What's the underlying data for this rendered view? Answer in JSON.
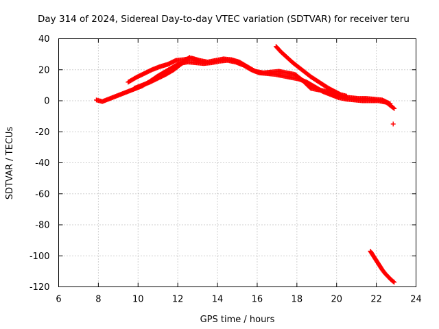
{
  "chart_data": {
    "type": "scatter",
    "title": "Day 314 of 2024, Sidereal Day-to-day VTEC variation (SDTVAR) for receiver teru",
    "xlabel": "GPS time / hours",
    "ylabel": "SDTVAR / TECUs",
    "xlim": [
      6,
      24
    ],
    "ylim": [
      -120,
      40
    ],
    "xticks": [
      6,
      8,
      10,
      12,
      14,
      16,
      18,
      20,
      22,
      24
    ],
    "yticks": [
      -120,
      -100,
      -80,
      -60,
      -40,
      -20,
      0,
      20,
      40
    ],
    "grid": true,
    "marker": "plus",
    "color": "#ff0000",
    "series": [
      {
        "name": "track-a",
        "x": [
          7.9,
          8.2,
          8.6,
          9.0,
          9.4,
          9.8,
          10.2,
          10.6,
          11.0,
          11.4,
          11.8,
          12.1,
          12.5,
          12.9,
          13.3,
          13.7,
          14.1,
          14.5,
          14.9,
          15.3,
          15.7,
          16.1,
          16.5,
          16.9,
          17.3,
          17.7,
          18.1,
          18.5,
          18.9,
          19.3,
          19.7,
          20.1,
          20.5,
          20.9,
          21.3,
          21.7,
          22.1,
          22.5,
          22.9
        ],
        "y": [
          0.5,
          -0.5,
          1.5,
          3.5,
          5.5,
          7.5,
          9.5,
          12.5,
          16,
          19,
          22,
          24,
          25,
          24.5,
          24,
          24.5,
          25.5,
          26,
          25,
          23,
          20,
          18,
          17.5,
          17,
          16,
          15,
          14,
          12,
          9,
          6,
          4,
          2,
          1,
          0.5,
          0,
          0,
          0,
          -1,
          -5
        ]
      },
      {
        "name": "track-b",
        "x": [
          9.5,
          9.9,
          10.3,
          10.7,
          11.1,
          11.5,
          11.9,
          12.3,
          12.7,
          13.1,
          13.5,
          13.9,
          14.3,
          14.7,
          15.1,
          15.5,
          15.9,
          16.3,
          16.7,
          17.1,
          17.5,
          17.9,
          18.3,
          18.7,
          19.1,
          19.5,
          19.9,
          20.3,
          20.7,
          21.1,
          21.5,
          21.9,
          22.3,
          22.7
        ],
        "y": [
          12,
          15,
          17.5,
          20,
          22,
          23.5,
          26,
          26.5,
          27.5,
          26,
          25,
          26,
          27,
          26.5,
          25,
          22,
          19,
          18,
          18.5,
          19,
          18,
          17,
          13,
          8,
          7,
          6,
          4,
          2.5,
          2,
          1.5,
          1.5,
          1,
          0.5,
          -2
        ]
      },
      {
        "name": "track-c",
        "x": [
          9.8,
          10.2,
          10.6,
          11.0,
          11.4,
          11.8,
          12.2,
          12.6
        ],
        "y": [
          8,
          10,
          12,
          14.5,
          17,
          20,
          24,
          28
        ]
      },
      {
        "name": "track-d",
        "x": [
          16.95,
          17.2,
          17.5,
          17.8,
          18.1,
          18.4,
          18.7,
          19.0,
          19.3,
          19.6,
          19.9,
          20.2,
          20.5
        ],
        "y": [
          35,
          31.5,
          28,
          24.5,
          21.5,
          18.5,
          15.5,
          13,
          10.5,
          8,
          6,
          4,
          3
        ]
      },
      {
        "name": "track-e",
        "x": [
          21.7,
          21.85,
          22.0,
          22.15,
          22.3,
          22.45,
          22.6,
          22.75,
          22.9
        ],
        "y": [
          -97,
          -100,
          -103,
          -106,
          -109,
          -111.5,
          -113.5,
          -115.5,
          -117
        ]
      },
      {
        "name": "outlier",
        "x": [
          22.85
        ],
        "y": [
          -15
        ]
      }
    ]
  }
}
